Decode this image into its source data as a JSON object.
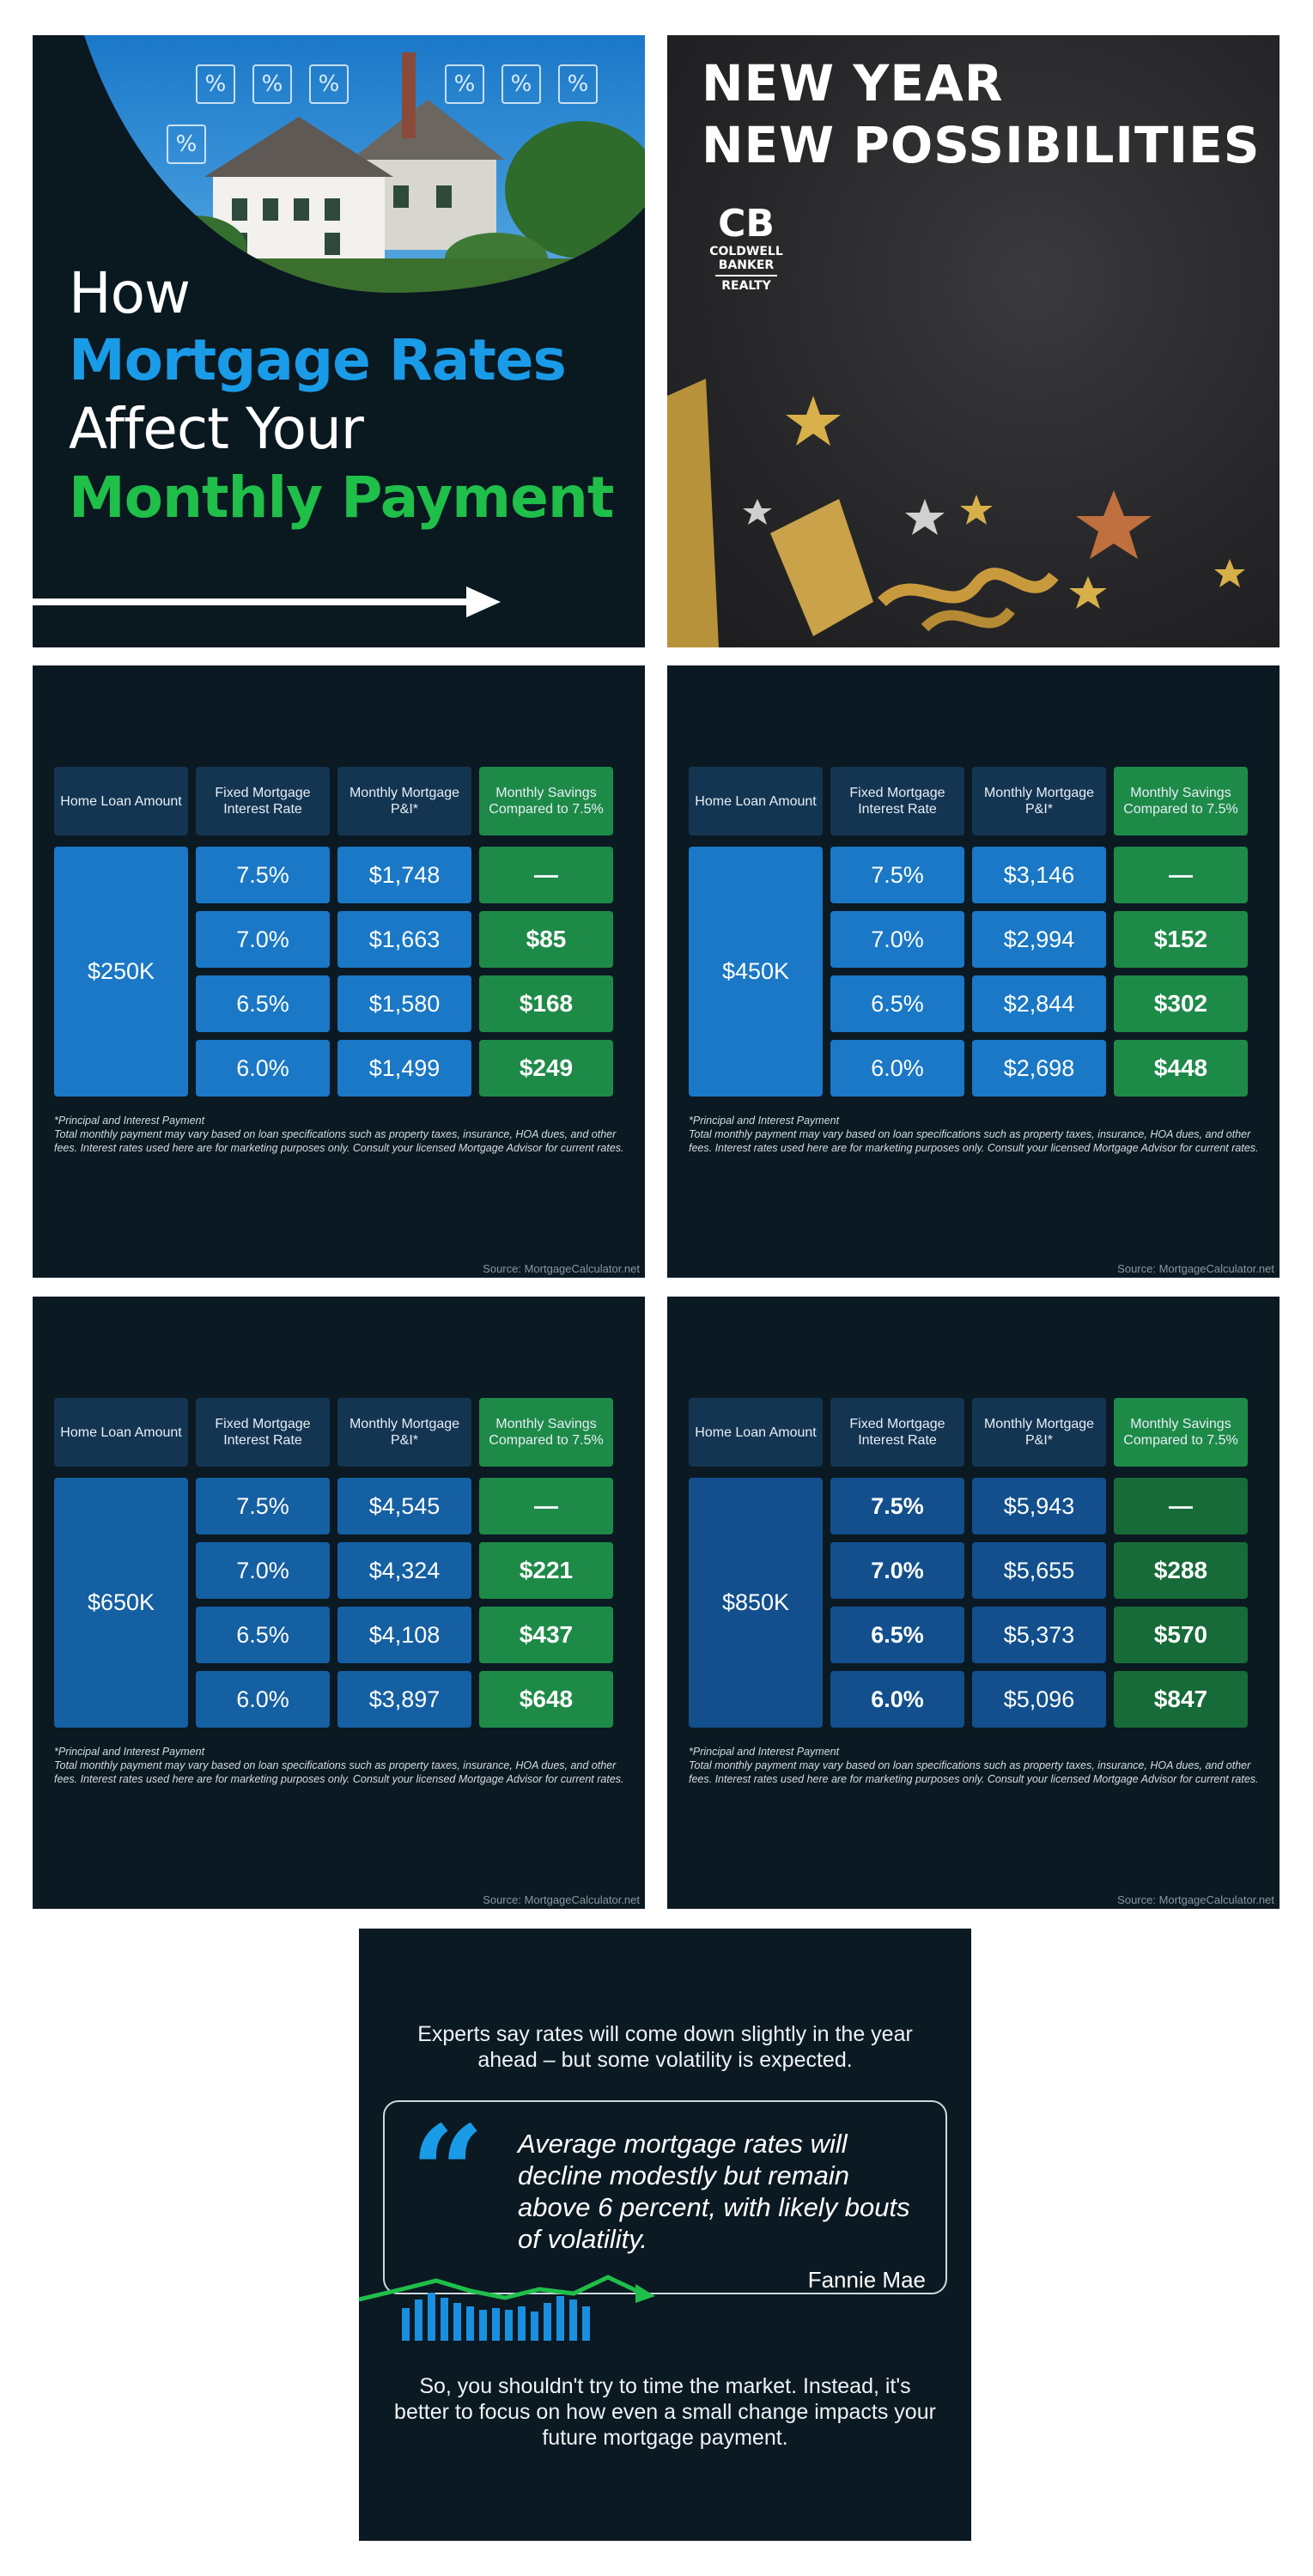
{
  "intro_panel": {
    "title_line1": "How",
    "title_line2": "Mortgage Rates",
    "title_line3": "Affect Your",
    "title_line4": "Monthly Payment",
    "percent_symbol": "%"
  },
  "brand_panel": {
    "headline_line1": "NEW YEAR",
    "headline_line2": "NEW POSSIBILITIES",
    "logo_mark": "CB",
    "logo_line1": "COLDWELL",
    "logo_line2": "BANKER",
    "logo_line3": "REALTY"
  },
  "table_headers": {
    "loan": "Home Loan Amount",
    "rate": "Fixed Mortgage Interest Rate",
    "payment": "Monthly Mortgage P&I*",
    "savings": "Monthly Savings Compared to 7.5%"
  },
  "footnote": {
    "line1": "*Principal and Interest Payment",
    "line2": "Total monthly payment may vary based on loan specifications such as property taxes, insurance, HOA dues, and other fees. Interest rates used here are for marketing purposes only. Consult your licensed Mortgage Advisor for current rates."
  },
  "source": "Source: MortgageCalculator.net",
  "tables": [
    {
      "loan": "$250K",
      "rows": [
        {
          "rate": "7.5%",
          "payment": "$1,748",
          "savings": "—"
        },
        {
          "rate": "7.0%",
          "payment": "$1,663",
          "savings": "$85"
        },
        {
          "rate": "6.5%",
          "payment": "$1,580",
          "savings": "$168"
        },
        {
          "rate": "6.0%",
          "payment": "$1,499",
          "savings": "$249"
        }
      ]
    },
    {
      "loan": "$450K",
      "rows": [
        {
          "rate": "7.5%",
          "payment": "$3,146",
          "savings": "—"
        },
        {
          "rate": "7.0%",
          "payment": "$2,994",
          "savings": "$152"
        },
        {
          "rate": "6.5%",
          "payment": "$2,844",
          "savings": "$302"
        },
        {
          "rate": "6.0%",
          "payment": "$2,698",
          "savings": "$448"
        }
      ]
    },
    {
      "loan": "$650K",
      "rows": [
        {
          "rate": "7.5%",
          "payment": "$4,545",
          "savings": "—"
        },
        {
          "rate": "7.0%",
          "payment": "$4,324",
          "savings": "$221"
        },
        {
          "rate": "6.5%",
          "payment": "$4,108",
          "savings": "$437"
        },
        {
          "rate": "6.0%",
          "payment": "$3,897",
          "savings": "$648"
        }
      ]
    },
    {
      "loan": "$850K",
      "rows": [
        {
          "rate": "7.5%",
          "payment": "$5,943",
          "savings": "—"
        },
        {
          "rate": "7.0%",
          "payment": "$5,655",
          "savings": "$288"
        },
        {
          "rate": "6.5%",
          "payment": "$5,373",
          "savings": "$570"
        },
        {
          "rate": "6.0%",
          "payment": "$5,096",
          "savings": "$847"
        }
      ]
    }
  ],
  "quote_panel": {
    "intro": "Experts say rates will come down slightly in the year ahead – but some volatility is expected.",
    "quote": "Average mortgage rates will decline modestly but remain above 6 percent, with likely bouts of volatility.",
    "author": "Fannie Mae",
    "outro": "So, you shouldn't try to time the market. Instead, it's better to focus on how even a small change impacts your future mortgage payment."
  },
  "colors": {
    "dark_bg": "#0b1922",
    "blue_cell": "#1a78c6",
    "green_cell": "#1e8a48",
    "header_cell": "#143552",
    "accent_blue": "#1a9be8",
    "accent_green": "#1fbf4a"
  },
  "icons": [
    "percent-icon",
    "house-image",
    "arrow-right-icon",
    "star-icon",
    "quote-mark-icon",
    "bar-chart-graphic"
  ]
}
